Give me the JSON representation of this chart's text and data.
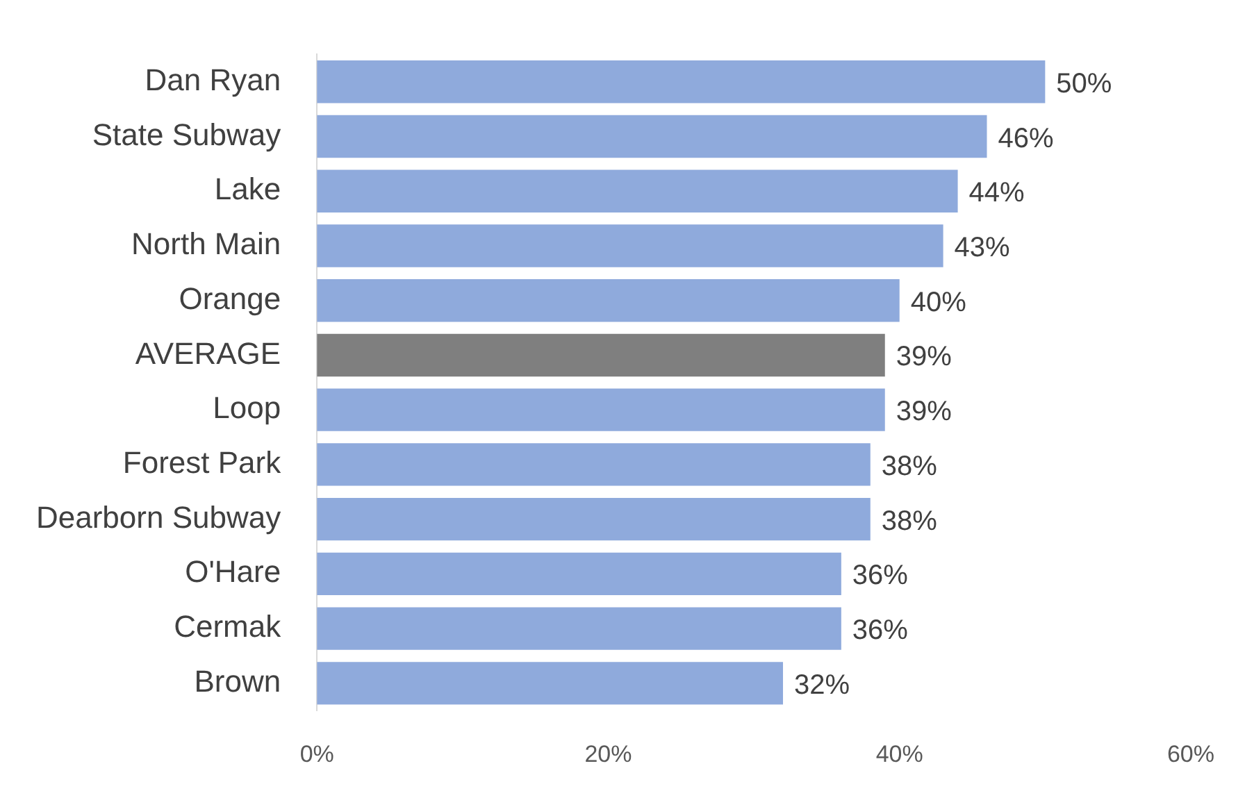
{
  "chart_data": {
    "type": "bar",
    "orientation": "horizontal",
    "categories": [
      "Dan Ryan",
      "State Subway",
      "Lake",
      "North Main",
      "Orange",
      "AVERAGE",
      "Loop",
      "Forest Park",
      "Dearborn Subway",
      "O'Hare",
      "Cermak",
      "Brown"
    ],
    "values": [
      50,
      46,
      44,
      43,
      40,
      39,
      39,
      38,
      38,
      36,
      36,
      32
    ],
    "value_labels": [
      "50%",
      "46%",
      "44%",
      "43%",
      "40%",
      "39%",
      "39%",
      "38%",
      "38%",
      "36%",
      "36%",
      "32%"
    ],
    "colors": [
      "#8faadc",
      "#8faadc",
      "#8faadc",
      "#8faadc",
      "#8faadc",
      "#7f7f7f",
      "#8faadc",
      "#8faadc",
      "#8faadc",
      "#8faadc",
      "#8faadc",
      "#8faadc"
    ],
    "xlim": [
      0,
      60
    ],
    "xticks": [
      {
        "value": 0,
        "label": "0%"
      },
      {
        "value": 20,
        "label": "20%"
      },
      {
        "value": 40,
        "label": "40%"
      },
      {
        "value": 60,
        "label": "60%"
      }
    ],
    "grid": false,
    "legend": false
  }
}
